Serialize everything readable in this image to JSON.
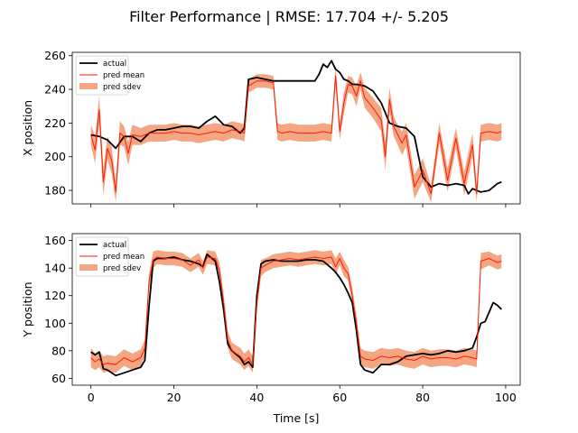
{
  "chart_data": {
    "type": "line",
    "title": "Filter Performance | RMSE: 17.704 +/- 5.205",
    "legend": {
      "placement": "top-left",
      "labels": [
        "actual",
        "pred mean",
        "pred sdev"
      ]
    },
    "colors": {
      "actual": "#000000",
      "pred_mean": "#ff1a00",
      "pred_sdev": "#f4a582"
    },
    "panels": [
      {
        "ylabel": "X position",
        "xlabel": "",
        "xlim": [
          -4.5,
          103.5
        ],
        "ylim": [
          172,
          262
        ],
        "xticks": [
          0,
          20,
          40,
          60,
          80,
          100
        ],
        "xtick_labels_shown": false,
        "yticks": [
          180,
          200,
          220,
          240,
          260
        ],
        "series": [
          {
            "name": "actual",
            "x": [
              0,
              2,
              4,
              6,
              8,
              10,
              12,
              14,
              16,
              18,
              20,
              22,
              24,
              26,
              28,
              30,
              32,
              34,
              36,
              37,
              38,
              40,
              42,
              44,
              46,
              48,
              50,
              52,
              54,
              55,
              56,
              57,
              58,
              59,
              60,
              61,
              62,
              63,
              64,
              66,
              68,
              70,
              72,
              74,
              76,
              78,
              80,
              82,
              84,
              86,
              88,
              90,
              91,
              92,
              94,
              96,
              98,
              99
            ],
            "y": [
              213,
              212,
              210,
              205,
              212,
              212,
              209,
              214,
              216,
              216,
              217,
              218,
              218,
              217,
              221,
              224,
              219,
              218,
              214,
              217,
              246,
              247,
              246,
              245,
              245,
              245,
              245,
              245,
              245,
              249,
              255,
              253,
              257,
              252,
              250,
              246,
              245,
              243,
              243,
              242,
              239,
              232,
              220,
              218,
              217,
              212,
              188,
              182,
              184,
              183,
              184,
              183,
              178,
              181,
              179,
              180,
              184,
              185
            ]
          },
          {
            "name": "pred mean",
            "x": [
              0,
              1,
              2,
              3,
              4,
              5,
              6,
              7,
              8,
              9,
              10,
              12,
              14,
              16,
              18,
              20,
              22,
              24,
              26,
              28,
              30,
              32,
              34,
              36,
              37,
              38,
              40,
              42,
              44,
              45,
              46,
              48,
              50,
              52,
              54,
              56,
              58,
              59,
              60,
              61,
              62,
              63,
              64,
              65,
              66,
              68,
              70,
              71,
              72,
              73,
              74,
              75,
              76,
              78,
              80,
              82,
              84,
              86,
              88,
              90,
              92,
              93,
              94,
              96,
              98,
              99
            ],
            "y": [
              213,
              204,
              228,
              185,
              205,
              198,
              179,
              214,
              212,
              202,
              213,
              212,
              214,
              214,
              214,
              215,
              214,
              214,
              213,
              214,
              215,
              214,
              216,
              215,
              214,
              242,
              245,
              245,
              244,
              215,
              214,
              215,
              214,
              214,
              214,
              215,
              214,
              248,
              215,
              232,
              243,
              242,
              236,
              245,
              235,
              229,
              222,
              200,
              234,
              218,
              213,
              208,
              213,
              182,
              192,
              178,
              214,
              186,
              211,
              184,
              207,
              178,
              214,
              215,
              214,
              215
            ]
          }
        ],
        "band": {
          "name": "pred sdev",
          "x": [
            0,
            1,
            2,
            3,
            4,
            5,
            6,
            7,
            8,
            9,
            10,
            12,
            14,
            16,
            18,
            20,
            22,
            24,
            26,
            28,
            30,
            32,
            34,
            36,
            37,
            38,
            40,
            42,
            44,
            45,
            46,
            48,
            50,
            52,
            54,
            56,
            58,
            59,
            60,
            61,
            62,
            63,
            64,
            65,
            66,
            68,
            70,
            71,
            72,
            73,
            74,
            75,
            76,
            78,
            80,
            82,
            84,
            86,
            88,
            90,
            92,
            93,
            94,
            96,
            98,
            99
          ],
          "lower": [
            207,
            196,
            220,
            177,
            198,
            190,
            173,
            207,
            206,
            195,
            207,
            207,
            209,
            209,
            209,
            210,
            209,
            209,
            208,
            209,
            210,
            209,
            211,
            210,
            209,
            238,
            241,
            241,
            240,
            210,
            209,
            210,
            209,
            209,
            209,
            210,
            209,
            242,
            210,
            226,
            238,
            237,
            230,
            240,
            229,
            223,
            215,
            192,
            227,
            212,
            207,
            201,
            206,
            175,
            185,
            173,
            208,
            179,
            205,
            177,
            200,
            173,
            209,
            210,
            209,
            210
          ],
          "upper": [
            219,
            212,
            236,
            193,
            212,
            206,
            185,
            221,
            218,
            209,
            219,
            217,
            219,
            219,
            219,
            220,
            219,
            219,
            218,
            219,
            220,
            219,
            221,
            220,
            219,
            246,
            249,
            249,
            248,
            220,
            219,
            220,
            219,
            219,
            219,
            220,
            219,
            254,
            220,
            238,
            248,
            247,
            242,
            250,
            241,
            235,
            229,
            208,
            241,
            224,
            219,
            215,
            220,
            189,
            199,
            183,
            220,
            193,
            217,
            191,
            214,
            183,
            219,
            220,
            219,
            220
          ]
        }
      },
      {
        "ylabel": "Y position",
        "xlabel": "Time [s]",
        "xlim": [
          -4.5,
          103.5
        ],
        "ylim": [
          55,
          165
        ],
        "xticks": [
          0,
          20,
          40,
          60,
          80,
          100
        ],
        "xtick_labels_shown": true,
        "yticks": [
          60,
          80,
          100,
          120,
          140,
          160
        ],
        "series": [
          {
            "name": "actual",
            "x": [
              0,
              1,
              2,
              3,
              4,
              5,
              6,
              8,
              10,
              12,
              13,
              14,
              15,
              16,
              18,
              20,
              22,
              24,
              26,
              27,
              28,
              30,
              31,
              32,
              33,
              34,
              36,
              37,
              38,
              39,
              40,
              41,
              42,
              44,
              46,
              48,
              50,
              52,
              54,
              56,
              58,
              59,
              60,
              61,
              62,
              63,
              64,
              65,
              66,
              68,
              70,
              72,
              74,
              76,
              78,
              80,
              82,
              84,
              86,
              88,
              90,
              92,
              93,
              94,
              95,
              96,
              97,
              98,
              99
            ],
            "y": [
              79,
              77,
              79,
              67,
              66,
              64,
              62,
              64,
              66,
              68,
              73,
              112,
              145,
              147,
              147,
              148,
              146,
              145,
              143,
              141,
              150,
              145,
              130,
              110,
              85,
              80,
              75,
              70,
              72,
              68,
              120,
              143,
              145,
              146,
              145,
              145,
              145,
              146,
              146,
              145,
              140,
              137,
              133,
              128,
              122,
              115,
              95,
              70,
              66,
              64,
              70,
              70,
              72,
              76,
              77,
              78,
              77,
              78,
              80,
              79,
              80,
              82,
              90,
              100,
              101,
              108,
              115,
              113,
              110
            ]
          },
          {
            "name": "pred mean",
            "x": [
              0,
              1,
              2,
              3,
              4,
              6,
              8,
              10,
              12,
              13,
              14,
              15,
              16,
              18,
              20,
              22,
              24,
              26,
              27,
              28,
              30,
              31,
              32,
              33,
              34,
              36,
              37,
              38,
              39,
              40,
              41,
              42,
              44,
              46,
              48,
              50,
              52,
              54,
              56,
              58,
              59,
              60,
              61,
              62,
              63,
              64,
              65,
              66,
              68,
              70,
              72,
              74,
              76,
              78,
              80,
              82,
              84,
              86,
              88,
              90,
              92,
              93,
              94,
              96,
              98,
              99
            ],
            "y": [
              75,
              72,
              74,
              70,
              71,
              70,
              75,
              72,
              75,
              82,
              130,
              146,
              148,
              147,
              147,
              146,
              142,
              146,
              140,
              148,
              147,
              138,
              115,
              88,
              80,
              76,
              72,
              75,
              70,
              115,
              140,
              142,
              145,
              146,
              147,
              146,
              147,
              148,
              147,
              148,
              141,
              147,
              140,
              136,
              120,
              100,
              76,
              74,
              73,
              76,
              75,
              76,
              74,
              73,
              76,
              74,
              75,
              75,
              74,
              76,
              75,
              74,
              145,
              147,
              144,
              145
            ]
          }
        ],
        "band": {
          "name": "pred sdev",
          "x": [
            0,
            1,
            2,
            3,
            4,
            6,
            8,
            10,
            12,
            13,
            14,
            15,
            16,
            18,
            20,
            22,
            24,
            26,
            27,
            28,
            30,
            31,
            32,
            33,
            34,
            36,
            37,
            38,
            39,
            40,
            41,
            42,
            44,
            46,
            48,
            50,
            52,
            54,
            56,
            58,
            59,
            60,
            61,
            62,
            63,
            64,
            65,
            66,
            68,
            70,
            72,
            74,
            76,
            78,
            80,
            82,
            84,
            86,
            88,
            90,
            92,
            93,
            94,
            96,
            98,
            99
          ],
          "lower": [
            68,
            66,
            68,
            64,
            65,
            64,
            69,
            66,
            69,
            76,
            124,
            140,
            143,
            142,
            142,
            141,
            137,
            141,
            135,
            143,
            142,
            132,
            109,
            82,
            74,
            70,
            66,
            69,
            64,
            109,
            134,
            137,
            140,
            141,
            142,
            141,
            142,
            143,
            142,
            143,
            135,
            142,
            134,
            131,
            114,
            94,
            70,
            68,
            67,
            70,
            69,
            70,
            68,
            67,
            70,
            68,
            69,
            69,
            68,
            70,
            69,
            68,
            139,
            142,
            139,
            140
          ],
          "upper": [
            82,
            78,
            80,
            76,
            77,
            76,
            81,
            78,
            81,
            88,
            136,
            152,
            153,
            152,
            152,
            151,
            147,
            151,
            145,
            153,
            152,
            144,
            121,
            94,
            86,
            82,
            78,
            81,
            76,
            121,
            146,
            147,
            150,
            151,
            152,
            151,
            152,
            153,
            152,
            153,
            147,
            152,
            146,
            141,
            126,
            106,
            82,
            80,
            79,
            82,
            81,
            82,
            80,
            79,
            82,
            80,
            81,
            81,
            80,
            82,
            81,
            80,
            151,
            152,
            149,
            150
          ]
        }
      }
    ]
  }
}
